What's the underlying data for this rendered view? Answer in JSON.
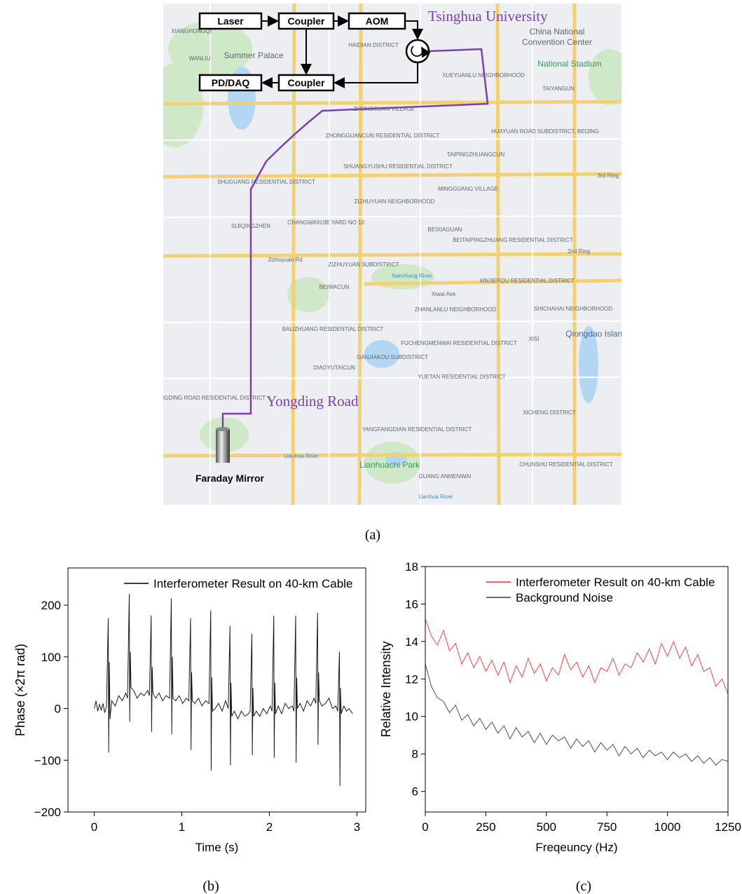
{
  "map": {
    "setup": {
      "laser": "Laser",
      "coupler_top": "Coupler",
      "aom": "AOM",
      "pd_daq": "PD/DAQ",
      "coupler_bottom": "Coupler",
      "faraday_mirror": "Faraday Mirror"
    },
    "annotations": {
      "university": "Tsinghua University",
      "road": "Yongding Road"
    },
    "labels": [
      "XIANGHONGQI",
      "Summer Palace",
      "WANLIU",
      "HAIDIAN DISTRICT",
      "China National",
      "Convention Center",
      "National Stadium",
      "XUEYUANLU NEIGHBORHOOD",
      "TAIYANGUN",
      "ZHONGGUAN VILLAGE",
      "ZHONGGUANCUN RESIDENTIAL DISTRICT",
      "HUAYUAN ROAD SUBDISTRICT, BEIJING",
      "TAIPINGZHUANGCUN",
      "SHUANGYUSHU RESIDENTIAL DISTRICT",
      "SHUGUANG RESIDENTIAL DISTRICT",
      "MINGGUANG VILLAGE",
      "3rd Ring",
      "ZIZHUYUAN NEIGHBORHOOD",
      "SIJIQINGZHEN",
      "CHANGWAXIJIE YARD NO 10",
      "BEIXIAGUAN",
      "BEITAIPINGZHUANG RESIDENTIAL DISTRICT",
      "2nd Ring",
      "Zizhuyuan Rd",
      "ZIZHUYUAN SUBDISTRICT",
      "Nanchang River",
      "XINJIEKOU RESIDENTIAL DISTRICT",
      "Xiwai Ave",
      "BEIWACUN",
      "ZHANLANLU NEIGHBORHOOD",
      "SHICHAHAI NEIGHBORHOOD",
      "Qiongdao Island",
      "BALIZHUANG RESIDENTIAL DISTRICT",
      "FUCHENGMENWAI RESIDENTIAL DISTRICT",
      "XISI",
      "GANJIAKOU SUBDISTRICT",
      "DIAOYUTAICUN",
      "YUETAN RESIDENTIAL DISTRICT",
      "YONGDING ROAD RESIDENTIAL DISTRICT",
      "XICHENG DISTRICT",
      "YANGFANGDIAN RESIDENTIAL DISTRICT",
      "Lianhua River",
      "Lianhuachi Park",
      "GUANG ANMENWAI",
      "CHUNSHU RESIDENTIAL DISTRICT",
      "Lianhua River"
    ]
  },
  "captions": [
    "(a)",
    "(b)",
    "(c)"
  ],
  "chart_data": [
    {
      "type": "line",
      "xlabel": "Time (s)",
      "ylabel": "Phase (×2π rad)",
      "xlim": [
        -0.3,
        3.1
      ],
      "ylim": [
        -200,
        272
      ],
      "xticks": [
        0,
        1,
        2,
        3
      ],
      "yticks": [
        {
          "value": -200,
          "label": "−200"
        },
        {
          "value": -100,
          "label": "−100"
        },
        0,
        100,
        200
      ],
      "legend": "upper right",
      "x": [
        0,
        0.02,
        0.04,
        0.06,
        0.08,
        0.1,
        0.12,
        0.14,
        0.16,
        0.165,
        0.172,
        0.18,
        0.2,
        0.24,
        0.28,
        0.32,
        0.36,
        0.38,
        0.4,
        0.405,
        0.412,
        0.42,
        0.45,
        0.49,
        0.53,
        0.57,
        0.61,
        0.63,
        0.65,
        0.655,
        0.662,
        0.67,
        0.7,
        0.74,
        0.78,
        0.82,
        0.86,
        0.88,
        0.885,
        0.892,
        0.9,
        0.93,
        0.97,
        1.01,
        1.05,
        1.08,
        1.1,
        1.105,
        1.112,
        1.12,
        1.15,
        1.19,
        1.23,
        1.27,
        1.31,
        1.33,
        1.335,
        1.342,
        1.35,
        1.38,
        1.42,
        1.46,
        1.5,
        1.53,
        1.55,
        1.555,
        1.562,
        1.57,
        1.6,
        1.64,
        1.68,
        1.72,
        1.76,
        1.78,
        1.8,
        1.805,
        1.812,
        1.82,
        1.85,
        1.89,
        1.93,
        1.97,
        2.01,
        2.03,
        2.05,
        2.055,
        2.062,
        2.07,
        2.1,
        2.14,
        2.18,
        2.22,
        2.26,
        2.28,
        2.3,
        2.305,
        2.312,
        2.32,
        2.35,
        2.39,
        2.43,
        2.47,
        2.51,
        2.53,
        2.55,
        2.555,
        2.562,
        2.57,
        2.6,
        2.64,
        2.68,
        2.72,
        2.76,
        2.78,
        2.8,
        2.805,
        2.812,
        2.82,
        2.85,
        2.88,
        2.91,
        2.95
      ],
      "series": [
        {
          "name": "Interferometer Result on 40-km Cable",
          "color": "#000000",
          "values": [
            0,
            15,
            -5,
            8,
            -3,
            10,
            -8,
            5,
            175,
            -85,
            90,
            -20,
            15,
            5,
            25,
            15,
            30,
            20,
            222,
            -25,
            110,
            40,
            35,
            20,
            30,
            25,
            35,
            25,
            180,
            -45,
            80,
            30,
            20,
            30,
            15,
            25,
            20,
            213,
            -50,
            100,
            20,
            15,
            25,
            10,
            20,
            15,
            175,
            -80,
            70,
            15,
            10,
            20,
            5,
            15,
            10,
            190,
            -120,
            60,
            -5,
            0,
            10,
            -5,
            15,
            0,
            160,
            -110,
            50,
            -15,
            -5,
            -20,
            -5,
            -15,
            -10,
            -5,
            145,
            -90,
            40,
            -15,
            -5,
            -15,
            0,
            -10,
            5,
            -5,
            180,
            -95,
            50,
            -10,
            5,
            -10,
            10,
            0,
            5,
            -5,
            180,
            -105,
            60,
            0,
            10,
            -5,
            15,
            5,
            20,
            10,
            185,
            -70,
            70,
            15,
            5,
            10,
            20,
            0,
            5,
            -5,
            110,
            -150,
            40,
            -10,
            5,
            -5,
            0,
            -10
          ]
        }
      ]
    },
    {
      "type": "line",
      "xlabel": "Freqeuncy (Hz)",
      "ylabel": "Relative Intensity",
      "xlim": [
        0,
        1250
      ],
      "ylim": [
        4.9,
        18
      ],
      "xticks": [
        0,
        250,
        500,
        750,
        1000,
        1250
      ],
      "yticks": [
        6,
        8,
        10,
        12,
        14,
        16,
        18
      ],
      "legend": "upper right",
      "x": [
        0,
        25,
        50,
        75,
        100,
        125,
        150,
        175,
        200,
        225,
        250,
        275,
        300,
        325,
        350,
        375,
        400,
        425,
        450,
        475,
        500,
        525,
        550,
        575,
        600,
        625,
        650,
        675,
        700,
        725,
        750,
        775,
        800,
        825,
        850,
        875,
        900,
        925,
        950,
        975,
        1000,
        1025,
        1050,
        1075,
        1100,
        1125,
        1150,
        1175,
        1200,
        1225,
        1250
      ],
      "series": [
        {
          "name": "Interferometer Result on 40-km Cable",
          "color": "#f03030",
          "values": [
            15.2,
            14.3,
            13.8,
            14.6,
            13.5,
            13.9,
            12.8,
            13.4,
            12.6,
            13.2,
            12.4,
            13.0,
            12.2,
            12.9,
            11.8,
            12.7,
            12.1,
            13.1,
            12.3,
            12.8,
            11.9,
            12.6,
            12.2,
            13.3,
            12.5,
            12.9,
            12.1,
            12.7,
            11.8,
            12.6,
            12.4,
            13.1,
            12.2,
            12.8,
            12.6,
            13.4,
            12.9,
            13.6,
            12.8,
            13.9,
            13.2,
            14.0,
            13.1,
            13.7,
            12.7,
            13.3,
            12.4,
            12.6,
            11.6,
            12.0,
            11.2
          ]
        },
        {
          "name": "Background Noise",
          "color": "#3a3a3a",
          "values": [
            12.8,
            11.6,
            11.0,
            10.8,
            10.2,
            10.6,
            9.8,
            10.1,
            9.5,
            9.9,
            9.3,
            9.7,
            9.1,
            9.5,
            8.8,
            9.4,
            8.9,
            9.2,
            8.6,
            9.1,
            8.5,
            9.0,
            8.7,
            8.9,
            8.3,
            8.8,
            8.4,
            8.7,
            8.1,
            8.6,
            8.2,
            8.5,
            7.9,
            8.4,
            8.0,
            8.3,
            7.8,
            8.2,
            7.9,
            8.1,
            7.7,
            8.1,
            7.8,
            8.0,
            7.6,
            7.9,
            7.5,
            7.8,
            7.4,
            7.7,
            7.6
          ]
        }
      ]
    }
  ]
}
